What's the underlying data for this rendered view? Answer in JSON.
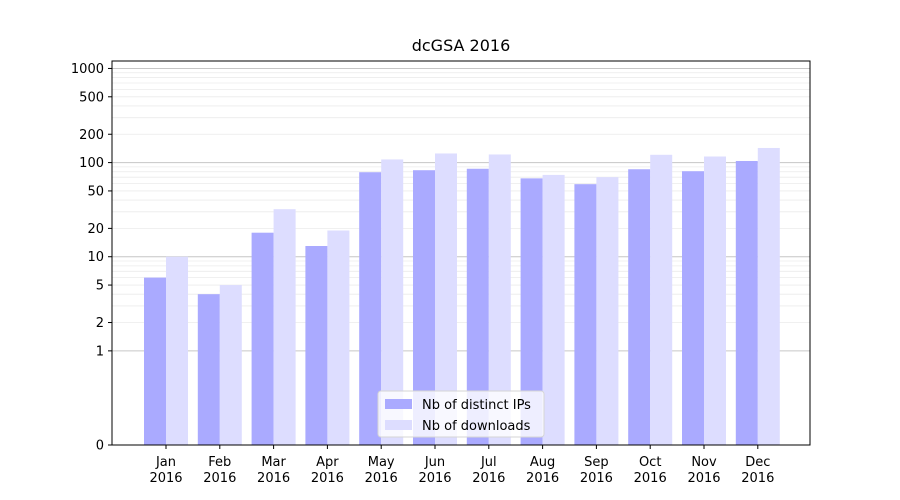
{
  "chart_data": {
    "type": "bar",
    "title": "dcGSA 2016",
    "xlabel": "",
    "ylabel": "",
    "categories": [
      "Jan\n2016",
      "Feb\n2016",
      "Mar\n2016",
      "Apr\n2016",
      "May\n2016",
      "Jun\n2016",
      "Jul\n2016",
      "Aug\n2016",
      "Sep\n2016",
      "Oct\n2016",
      "Nov\n2016",
      "Dec\n2016"
    ],
    "series": [
      {
        "name": "Nb of distinct IPs",
        "color": "#aaaaff",
        "values": [
          6,
          4,
          18,
          13,
          79,
          83,
          86,
          68,
          59,
          85,
          81,
          104
        ]
      },
      {
        "name": "Nb of downloads",
        "color": "#ddddff",
        "values": [
          10,
          5,
          32,
          19,
          108,
          125,
          122,
          74,
          70,
          121,
          116,
          143
        ]
      }
    ],
    "y_scale": "symlog",
    "ylim": [
      0,
      1200
    ],
    "yticks": [
      0,
      1,
      2,
      5,
      10,
      20,
      50,
      100,
      200,
      500,
      1000
    ],
    "ytick_labels": [
      "0",
      "1",
      "2",
      "5",
      "10",
      "20",
      "50",
      "100",
      "200",
      "500",
      "1000"
    ],
    "grid": "horizontal",
    "legend_position": "lower-center"
  }
}
